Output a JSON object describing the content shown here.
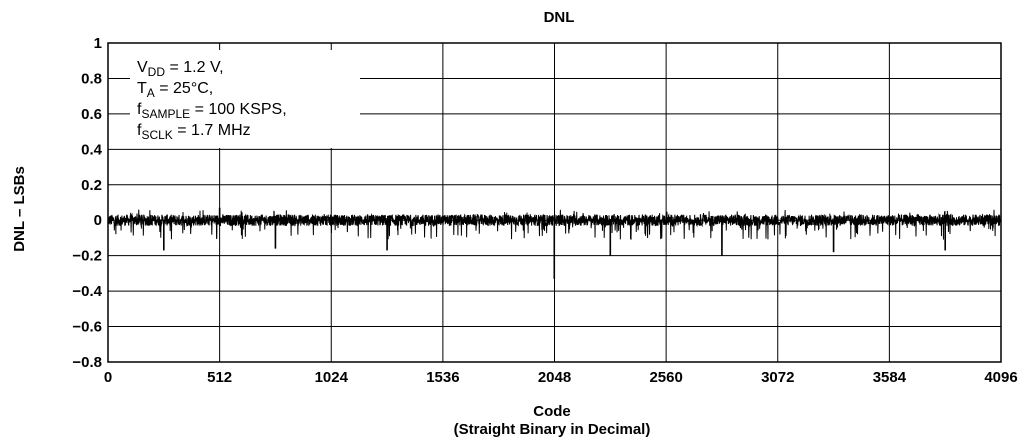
{
  "chart_data": {
    "type": "line",
    "title": "DNL",
    "xlabel": "Code",
    "xlabel_sub": "(Straight Binary in Decimal)",
    "ylabel": "DNL – LSBs",
    "xlim": [
      0,
      4096
    ],
    "ylim": [
      -0.8,
      1
    ],
    "xticks": [
      0,
      512,
      1024,
      1536,
      2048,
      2560,
      3072,
      3584,
      4096
    ],
    "yticks": [
      1,
      0.8,
      0.6,
      0.4,
      0.2,
      0,
      -0.2,
      -0.4,
      -0.6,
      -0.8
    ],
    "ytick_labels": [
      "1",
      "0.8",
      "0.6",
      "0.4",
      "0.2",
      "0",
      "−0.2",
      "−0.4",
      "−0.6",
      "−0.8"
    ],
    "grid": true,
    "legend": "none",
    "annotation": {
      "vdd": "V",
      "vdd_sub": "DD",
      "vdd_val": " = 1.2 V,",
      "ta": "T",
      "ta_sub": "A",
      "ta_val": " = 25°C,",
      "fs": "f",
      "fs_sub": "SAMPLE",
      "fs_val": " = 100 KSPS,",
      "fclk": "f",
      "fclk_sub": "SCLK",
      "fclk_val": " = 1.7 MHz"
    },
    "series": [
      {
        "style": "dense noise trace over all codes 0–4095",
        "baseline": 0,
        "noise_band": [
          -0.04,
          0.04
        ],
        "notable_spikes": [
          {
            "x": 256,
            "y": -0.17
          },
          {
            "x": 512,
            "y": 0.07
          },
          {
            "x": 768,
            "y": -0.16
          },
          {
            "x": 1280,
            "y": -0.17
          },
          {
            "x": 2047,
            "y": -0.33
          },
          {
            "x": 2304,
            "y": -0.2
          },
          {
            "x": 2816,
            "y": -0.2
          },
          {
            "x": 3328,
            "y": -0.18
          },
          {
            "x": 3840,
            "y": -0.17
          }
        ]
      }
    ],
    "colors": {
      "line": "#000000",
      "grid": "#000000",
      "background": "#ffffff"
    }
  }
}
